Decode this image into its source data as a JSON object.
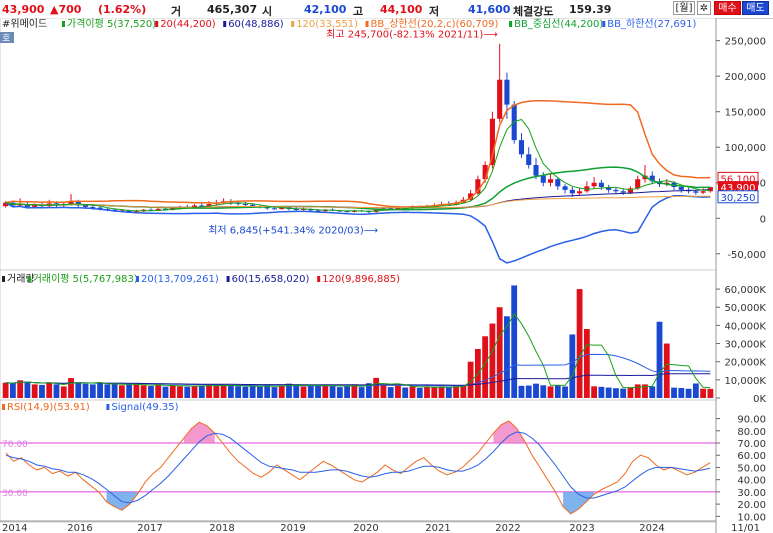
{
  "topbar": {
    "price": "43,900",
    "change": "▲700",
    "change_pct": "(1.62%)",
    "vol_label": "거",
    "vol_value": "465,307",
    "open_label": "시",
    "open_value": "42,100",
    "high_label": "고",
    "high_value": "44,100",
    "low_label": "저",
    "low_value": "41,600",
    "strength_label": "체결강도",
    "strength_value": "159.39",
    "period_btn": "[월]",
    "settings_icon": "gear-icon",
    "buy_btn": "매수",
    "sell_btn": "매도"
  },
  "legend": {
    "name": "#위메이드",
    "tag": "호",
    "price_items": [
      {
        "text": "가격이평 5(37,520)",
        "color": "#1aa01a"
      },
      {
        "text": "20(44,200)",
        "color": "#e0101a"
      },
      {
        "text": "60(48,886)",
        "color": "#1a1a9a"
      },
      {
        "text": "120(33,551)",
        "color": "#f0a040"
      },
      {
        "text": "BB_상한선(20,2,c)(60,709)",
        "color": "#f06a20"
      },
      {
        "text": "BB_중심선(44,200)",
        "color": "#10a030"
      },
      {
        "text": "BB_하한선(27,691)",
        "color": "#2a60e8"
      }
    ],
    "volume_items": [
      {
        "text": "거래량",
        "color": "#222222"
      },
      {
        "text": "거래이평 5(5,767,983)",
        "color": "#1aa01a"
      },
      {
        "text": "20(13,709,261)",
        "color": "#2a60e8"
      },
      {
        "text": "60(15,658,020)",
        "color": "#1a1a9a"
      },
      {
        "text": "120(9,896,885)",
        "color": "#e0101a"
      }
    ],
    "rsi_items": [
      {
        "text": "RSI(14,9)(53.91)",
        "color": "#f06a20"
      },
      {
        "text": "Signal(49.35)",
        "color": "#2a60e8"
      }
    ]
  },
  "chart_data": {
    "type": "candlestick",
    "x_labels": [
      "2014",
      "2016",
      "2017",
      "2018",
      "2019",
      "2020",
      "2021",
      "2022",
      "2023",
      "2024",
      "11/01"
    ],
    "panes": [
      {
        "name": "price",
        "y_ticks": [
          "250,000",
          "200,000",
          "150,000",
          "100,000",
          "50,000",
          "0",
          "-50,000"
        ],
        "ylim": [
          -70000,
          265000
        ],
        "annotations": {
          "max_label": "최고 245,700(-82.13% 2021/11)",
          "min_label": "최저 6,845(+541.34% 2020/03)"
        },
        "price_tags": [
          {
            "text": "56,100",
            "value": 56100,
            "color": "#e0101a"
          },
          {
            "text": "43,900",
            "value": 43900,
            "color": "#e0101a",
            "bg": "#e0101a"
          },
          {
            "text": "30,250",
            "value": 30250,
            "color": "#1a48d0"
          }
        ],
        "candles": [
          {
            "o": 17000,
            "c": 22000,
            "h": 24000,
            "l": 15000
          },
          {
            "o": 22000,
            "c": 18000,
            "h": 25000,
            "l": 16000
          },
          {
            "o": 18000,
            "c": 20000,
            "h": 28000,
            "l": 16000
          },
          {
            "o": 20000,
            "c": 16000,
            "h": 23000,
            "l": 14000
          },
          {
            "o": 16000,
            "c": 19000,
            "h": 21000,
            "l": 14000
          },
          {
            "o": 19000,
            "c": 17000,
            "h": 22000,
            "l": 15000
          },
          {
            "o": 17000,
            "c": 21000,
            "h": 26000,
            "l": 16000
          },
          {
            "o": 21000,
            "c": 18000,
            "h": 24000,
            "l": 16000
          },
          {
            "o": 18000,
            "c": 20000,
            "h": 22000,
            "l": 16000
          },
          {
            "o": 20000,
            "c": 24000,
            "h": 34000,
            "l": 18000
          },
          {
            "o": 24000,
            "c": 18000,
            "h": 26000,
            "l": 16000
          },
          {
            "o": 18000,
            "c": 16000,
            "h": 20000,
            "l": 13000
          },
          {
            "o": 16000,
            "c": 15000,
            "h": 18000,
            "l": 12000
          },
          {
            "o": 15000,
            "c": 13000,
            "h": 17000,
            "l": 11000
          },
          {
            "o": 13000,
            "c": 12000,
            "h": 15000,
            "l": 10000
          },
          {
            "o": 12000,
            "c": 10000,
            "h": 14000,
            "l": 9000
          },
          {
            "o": 10000,
            "c": 11000,
            "h": 13000,
            "l": 9000
          },
          {
            "o": 11000,
            "c": 9000,
            "h": 12000,
            "l": 8000
          },
          {
            "o": 9000,
            "c": 10000,
            "h": 12000,
            "l": 8000
          },
          {
            "o": 10000,
            "c": 12000,
            "h": 13000,
            "l": 9000
          },
          {
            "o": 12000,
            "c": 11000,
            "h": 14000,
            "l": 10000
          },
          {
            "o": 11000,
            "c": 13000,
            "h": 15000,
            "l": 10000
          },
          {
            "o": 13000,
            "c": 12000,
            "h": 15000,
            "l": 11000
          },
          {
            "o": 12000,
            "c": 14000,
            "h": 16000,
            "l": 11000
          },
          {
            "o": 14000,
            "c": 16000,
            "h": 18000,
            "l": 13000
          },
          {
            "o": 16000,
            "c": 15000,
            "h": 19000,
            "l": 14000
          },
          {
            "o": 15000,
            "c": 18000,
            "h": 20000,
            "l": 14000
          },
          {
            "o": 18000,
            "c": 17000,
            "h": 21000,
            "l": 15000
          },
          {
            "o": 17000,
            "c": 20000,
            "h": 24000,
            "l": 16000
          },
          {
            "o": 20000,
            "c": 22000,
            "h": 26000,
            "l": 18000
          },
          {
            "o": 22000,
            "c": 24000,
            "h": 28000,
            "l": 20000
          },
          {
            "o": 24000,
            "c": 22000,
            "h": 27000,
            "l": 19000
          },
          {
            "o": 22000,
            "c": 20000,
            "h": 25000,
            "l": 18000
          },
          {
            "o": 20000,
            "c": 19000,
            "h": 23000,
            "l": 17000
          },
          {
            "o": 19000,
            "c": 17000,
            "h": 21000,
            "l": 15000
          },
          {
            "o": 17000,
            "c": 16000,
            "h": 19000,
            "l": 14000
          },
          {
            "o": 16000,
            "c": 14000,
            "h": 18000,
            "l": 12000
          },
          {
            "o": 14000,
            "c": 13000,
            "h": 16000,
            "l": 12000
          },
          {
            "o": 13000,
            "c": 15000,
            "h": 17000,
            "l": 12000
          },
          {
            "o": 15000,
            "c": 13000,
            "h": 17000,
            "l": 11000
          },
          {
            "o": 13000,
            "c": 12000,
            "h": 15000,
            "l": 10000
          },
          {
            "o": 12000,
            "c": 13000,
            "h": 15000,
            "l": 11000
          },
          {
            "o": 13000,
            "c": 11000,
            "h": 14000,
            "l": 10000
          },
          {
            "o": 11000,
            "c": 10000,
            "h": 13000,
            "l": 9000
          },
          {
            "o": 10000,
            "c": 12000,
            "h": 13000,
            "l": 9000
          },
          {
            "o": 12000,
            "c": 11000,
            "h": 14000,
            "l": 10000
          },
          {
            "o": 11000,
            "c": 10000,
            "h": 12000,
            "l": 9000
          },
          {
            "o": 10000,
            "c": 9000,
            "h": 11000,
            "l": 8000
          },
          {
            "o": 9000,
            "c": 11000,
            "h": 12000,
            "l": 8000
          },
          {
            "o": 11000,
            "c": 10000,
            "h": 12000,
            "l": 9000
          },
          {
            "o": 10000,
            "c": 9000,
            "h": 11000,
            "l": 7000
          },
          {
            "o": 9000,
            "c": 12000,
            "h": 13000,
            "l": 6845
          },
          {
            "o": 12000,
            "c": 14000,
            "h": 16000,
            "l": 11000
          },
          {
            "o": 14000,
            "c": 13000,
            "h": 16000,
            "l": 12000
          },
          {
            "o": 13000,
            "c": 15000,
            "h": 17000,
            "l": 12000
          },
          {
            "o": 15000,
            "c": 14000,
            "h": 17000,
            "l": 13000
          },
          {
            "o": 14000,
            "c": 16000,
            "h": 18000,
            "l": 13000
          },
          {
            "o": 16000,
            "c": 15000,
            "h": 18000,
            "l": 14000
          },
          {
            "o": 15000,
            "c": 17000,
            "h": 19000,
            "l": 14000
          },
          {
            "o": 17000,
            "c": 18000,
            "h": 21000,
            "l": 16000
          },
          {
            "o": 18000,
            "c": 20000,
            "h": 23000,
            "l": 17000
          },
          {
            "o": 20000,
            "c": 19000,
            "h": 24000,
            "l": 18000
          },
          {
            "o": 19000,
            "c": 22000,
            "h": 25000,
            "l": 18000
          },
          {
            "o": 22000,
            "c": 26000,
            "h": 30000,
            "l": 21000
          },
          {
            "o": 26000,
            "c": 35000,
            "h": 40000,
            "l": 25000
          },
          {
            "o": 35000,
            "c": 55000,
            "h": 60000,
            "l": 33000
          },
          {
            "o": 55000,
            "c": 75000,
            "h": 80000,
            "l": 50000
          },
          {
            "o": 75000,
            "c": 140000,
            "h": 150000,
            "l": 70000
          },
          {
            "o": 140000,
            "c": 195000,
            "h": 245700,
            "l": 135000
          },
          {
            "o": 195000,
            "c": 160000,
            "h": 205000,
            "l": 140000
          },
          {
            "o": 160000,
            "c": 110000,
            "h": 165000,
            "l": 105000
          },
          {
            "o": 110000,
            "c": 90000,
            "h": 120000,
            "l": 85000
          },
          {
            "o": 90000,
            "c": 75000,
            "h": 100000,
            "l": 70000
          },
          {
            "o": 75000,
            "c": 60000,
            "h": 85000,
            "l": 55000
          },
          {
            "o": 60000,
            "c": 50000,
            "h": 65000,
            "l": 45000
          },
          {
            "o": 50000,
            "c": 55000,
            "h": 62000,
            "l": 45000
          },
          {
            "o": 55000,
            "c": 45000,
            "h": 58000,
            "l": 40000
          },
          {
            "o": 45000,
            "c": 40000,
            "h": 48000,
            "l": 35000
          },
          {
            "o": 40000,
            "c": 35000,
            "h": 44000,
            "l": 30000
          },
          {
            "o": 35000,
            "c": 38000,
            "h": 42000,
            "l": 32000
          },
          {
            "o": 38000,
            "c": 45000,
            "h": 52000,
            "l": 36000
          },
          {
            "o": 45000,
            "c": 50000,
            "h": 58000,
            "l": 42000
          },
          {
            "o": 50000,
            "c": 44000,
            "h": 54000,
            "l": 40000
          },
          {
            "o": 44000,
            "c": 40000,
            "h": 47000,
            "l": 36000
          },
          {
            "o": 40000,
            "c": 38000,
            "h": 43000,
            "l": 34000
          },
          {
            "o": 38000,
            "c": 36000,
            "h": 41000,
            "l": 33000
          },
          {
            "o": 36000,
            "c": 42000,
            "h": 45000,
            "l": 34000
          },
          {
            "o": 42000,
            "c": 55000,
            "h": 60000,
            "l": 40000
          },
          {
            "o": 55000,
            "c": 60000,
            "h": 75000,
            "l": 50000
          },
          {
            "o": 60000,
            "c": 52000,
            "h": 66000,
            "l": 48000
          },
          {
            "o": 52000,
            "c": 48000,
            "h": 56000,
            "l": 44000
          },
          {
            "o": 48000,
            "c": 50000,
            "h": 55000,
            "l": 45000
          },
          {
            "o": 50000,
            "c": 44000,
            "h": 52000,
            "l": 40000
          },
          {
            "o": 44000,
            "c": 40000,
            "h": 46000,
            "l": 36000
          },
          {
            "o": 40000,
            "c": 38000,
            "h": 43000,
            "l": 35000
          },
          {
            "o": 38000,
            "c": 36000,
            "h": 40000,
            "l": 33000
          },
          {
            "o": 36000,
            "c": 38000,
            "h": 42000,
            "l": 34000
          },
          {
            "o": 38000,
            "c": 43900,
            "h": 44100,
            "l": 36000
          }
        ]
      },
      {
        "name": "volume",
        "y_ticks": [
          "60,000K",
          "50,000K",
          "40,000K",
          "30,000K",
          "20,000K",
          "10,000K",
          "0K"
        ],
        "ylim": [
          0,
          65000
        ]
      },
      {
        "name": "rsi",
        "y_ticks": [
          "90.00",
          "80.00",
          "70.00",
          "60.00",
          "50.00",
          "40.00",
          "30.00",
          "20.00",
          "10.00"
        ],
        "ylim": [
          7,
          97
        ],
        "levels": [
          {
            "value": 70,
            "label": "70.00"
          },
          {
            "value": 30,
            "label": "30.00"
          }
        ],
        "rsi_values": [
          62,
          55,
          58,
          52,
          48,
          50,
          45,
          47,
          43,
          46,
          40,
          35,
          30,
          22,
          18,
          15,
          20,
          28,
          38,
          45,
          50,
          58,
          66,
          74,
          82,
          87,
          84,
          78,
          70,
          62,
          55,
          50,
          45,
          42,
          46,
          52,
          48,
          44,
          40,
          45,
          50,
          55,
          52,
          48,
          44,
          40,
          38,
          42,
          46,
          52,
          48,
          45,
          50,
          55,
          58,
          52,
          47,
          44,
          46,
          50,
          56,
          62,
          70,
          78,
          85,
          88,
          82,
          72,
          60,
          50,
          40,
          30,
          18,
          12,
          16,
          22,
          28,
          32,
          35,
          38,
          45,
          55,
          60,
          58,
          52,
          48,
          50,
          47,
          44,
          46,
          50,
          53.91
        ],
        "signal_values": [
          60,
          58,
          57,
          55,
          52,
          51,
          49,
          48,
          46,
          46,
          44,
          41,
          37,
          32,
          27,
          22,
          21,
          23,
          27,
          32,
          37,
          43,
          50,
          57,
          64,
          71,
          76,
          78,
          77,
          74,
          69,
          64,
          59,
          54,
          51,
          50,
          49,
          48,
          46,
          46,
          46,
          47,
          48,
          48,
          47,
          45,
          43,
          42,
          43,
          45,
          46,
          46,
          47,
          49,
          51,
          51,
          50,
          48,
          47,
          47,
          49,
          52,
          57,
          63,
          70,
          76,
          79,
          78,
          74,
          68,
          60,
          52,
          43,
          34,
          28,
          25,
          25,
          27,
          29,
          31,
          34,
          39,
          44,
          48,
          50,
          50,
          50,
          49,
          48,
          47,
          48,
          49.35
        ]
      }
    ]
  }
}
